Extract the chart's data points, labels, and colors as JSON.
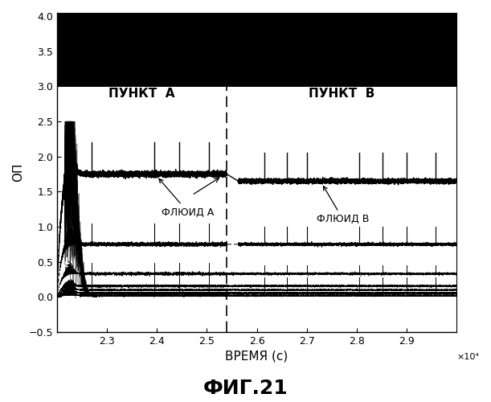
{
  "title": "ФИГ.21",
  "xlabel": "ВРЕМЯ (с)",
  "ylabel": "ОП",
  "xlim": [
    22000,
    30000
  ],
  "ylim": [
    -0.5,
    4.05
  ],
  "yticks": [
    -0.5,
    0,
    0.5,
    1.0,
    1.5,
    2.0,
    2.5,
    3.0,
    3.5,
    4.0
  ],
  "xticks": [
    23000,
    24000,
    25000,
    26000,
    27000,
    28000,
    29000
  ],
  "xtick_labels": [
    "2.3",
    "2.4",
    "2.5",
    "2.6",
    "2.7",
    "2.8",
    "2.9"
  ],
  "x_multiplier_label": "×10⁴",
  "divider_x": 25400,
  "label_A": "ПУНКТ  А",
  "label_B": "ПУНКТ  В",
  "annotation_A": "ФЛЮИД А",
  "annotation_B": "ФЛЮИД В",
  "line1_level_A": 1.75,
  "line1_level_B": 1.65,
  "line2_level": 0.75,
  "line3_level": 0.33,
  "line4_level": 0.155,
  "line5_level": 0.1,
  "line6_level": 0.055,
  "line7_level": 0.02,
  "background_color": "#ffffff",
  "line_color": "#000000"
}
